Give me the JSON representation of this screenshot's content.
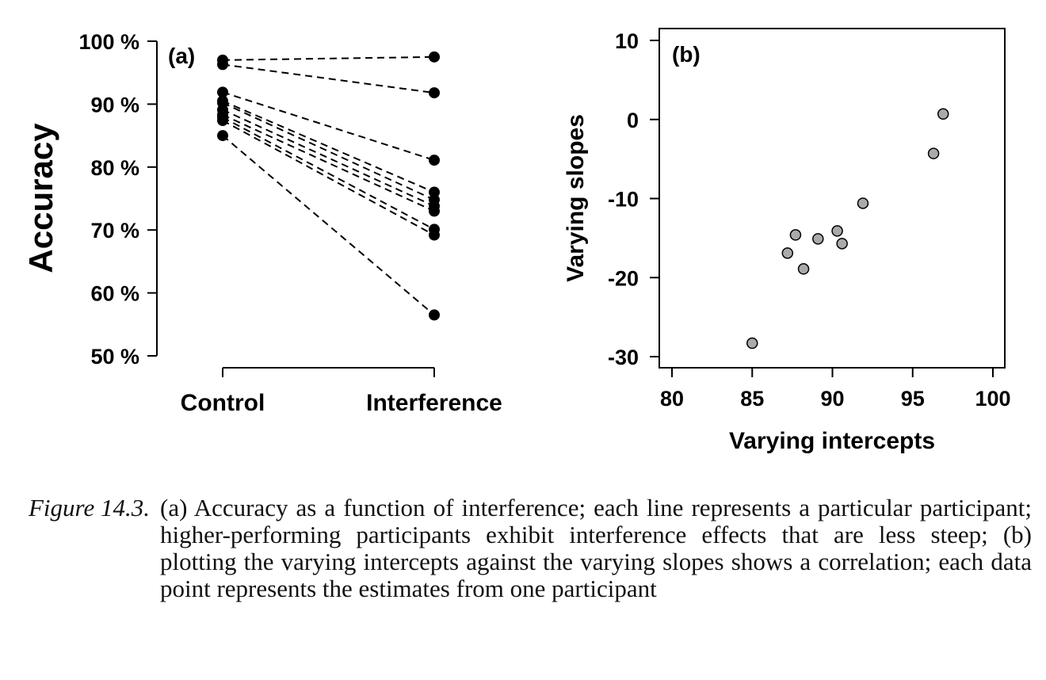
{
  "chart_data": [
    {
      "type": "line",
      "panel_label": "(a)",
      "title": "",
      "xlabel": "",
      "ylabel": "Accuracy",
      "categories": [
        "Control",
        "Interference"
      ],
      "ylim": [
        50,
        100
      ],
      "yticks": [
        50,
        60,
        70,
        80,
        90,
        100
      ],
      "ytick_labels": [
        "50 %",
        "60 %",
        "70 %",
        "80 %",
        "90 %",
        "100 %"
      ],
      "line_style": "dashed",
      "series": [
        {
          "values": [
            97.0,
            97.5
          ]
        },
        {
          "values": [
            96.3,
            91.8
          ]
        },
        {
          "values": [
            91.9,
            81.1
          ]
        },
        {
          "values": [
            90.5,
            76.0
          ]
        },
        {
          "values": [
            90.2,
            74.8
          ]
        },
        {
          "values": [
            89.1,
            73.8
          ]
        },
        {
          "values": [
            88.3,
            73.0
          ]
        },
        {
          "values": [
            87.9,
            70.1
          ]
        },
        {
          "values": [
            87.4,
            69.2
          ]
        },
        {
          "values": [
            85.0,
            56.5
          ]
        }
      ]
    },
    {
      "type": "scatter",
      "panel_label": "(b)",
      "title": "",
      "xlabel": "Varying intercepts",
      "ylabel": "Varying slopes",
      "xlim": [
        80,
        100
      ],
      "ylim": [
        -30,
        10
      ],
      "xticks": [
        80,
        85,
        90,
        95,
        100
      ],
      "yticks": [
        -30,
        -20,
        -10,
        0,
        10
      ],
      "point_color": "#aaaaaa",
      "points": [
        {
          "x": 85.0,
          "y": -28.3
        },
        {
          "x": 87.2,
          "y": -16.9
        },
        {
          "x": 87.7,
          "y": -14.6
        },
        {
          "x": 88.2,
          "y": -18.9
        },
        {
          "x": 89.1,
          "y": -15.1
        },
        {
          "x": 90.3,
          "y": -14.1
        },
        {
          "x": 90.6,
          "y": -15.7
        },
        {
          "x": 91.9,
          "y": -10.6
        },
        {
          "x": 96.3,
          "y": -4.3
        },
        {
          "x": 96.9,
          "y": 0.7
        }
      ]
    }
  ],
  "caption": {
    "label": "Figure 14.3.",
    "text": "(a) Accuracy as a function of interference; each line represents a particular participant; higher-performing participants exhibit interference effects that are less steep; (b) plotting the varying intercepts against the varying slopes shows a correlation; each data point represents the estimates from one participant"
  }
}
